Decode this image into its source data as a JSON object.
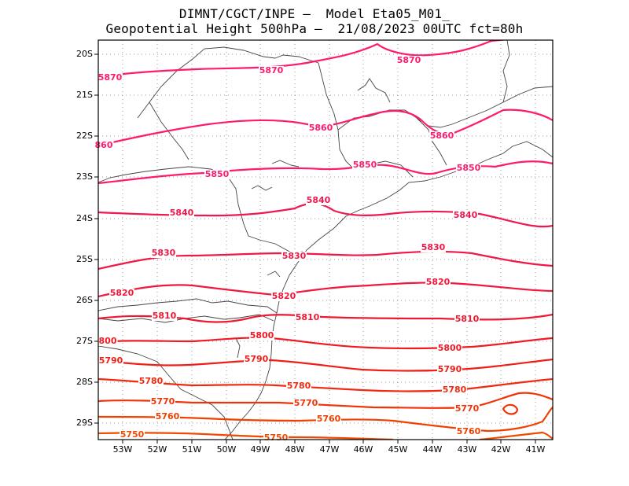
{
  "title": {
    "line1": "DIMNT/CGCT/INPE –  Model Eta05_M01_",
    "line2": "Geopotential Height 500hPa –  21/08/2023 00UTC fct=80h"
  },
  "axes": {
    "lat_labels": [
      "20S",
      "21S",
      "22S",
      "23S",
      "24S",
      "25S",
      "26S",
      "27S",
      "28S",
      "29S"
    ],
    "lon_labels": [
      "53W",
      "52W",
      "51W",
      "50W",
      "49W",
      "48W",
      "47W",
      "46W",
      "45W",
      "44W",
      "43W",
      "42W",
      "41W"
    ]
  },
  "contours": [
    {
      "value": 5870,
      "color": "#ff1a6e",
      "labels": [
        "5870",
        "5870",
        "5870"
      ]
    },
    {
      "value": 5860,
      "color": "#ff1a6e",
      "labels": [
        "860",
        "5860",
        "5860"
      ]
    },
    {
      "value": 5850,
      "color": "#ff1a6e",
      "labels": [
        "5850",
        "5850",
        "5850"
      ]
    },
    {
      "value": 5840,
      "color": "#f01850",
      "labels": [
        "5840",
        "5840",
        "5840"
      ]
    },
    {
      "value": 5830,
      "color": "#f01848",
      "labels": [
        "5830",
        "5830",
        "5830"
      ]
    },
    {
      "value": 5820,
      "color": "#f0183c",
      "labels": [
        "5820",
        "5820",
        "5820"
      ]
    },
    {
      "value": 5810,
      "color": "#f01830",
      "labels": [
        "5810",
        "5810",
        "5810"
      ]
    },
    {
      "value": 5800,
      "color": "#f01a24",
      "labels": [
        "800",
        "5800",
        "5800"
      ]
    },
    {
      "value": 5790,
      "color": "#f01e18",
      "labels": [
        "5790",
        "5790",
        "5790"
      ]
    },
    {
      "value": 5780,
      "color": "#f02a10",
      "labels": [
        "5780",
        "5780",
        "5780"
      ]
    },
    {
      "value": 5770,
      "color": "#f03408",
      "labels": [
        "5770",
        "5770",
        "5770"
      ]
    },
    {
      "value": 5760,
      "color": "#f04000",
      "labels": [
        "5760",
        "5760",
        "5760"
      ]
    },
    {
      "value": 5750,
      "color": "#f04a00",
      "labels": [
        "5750",
        "5750"
      ]
    }
  ]
}
